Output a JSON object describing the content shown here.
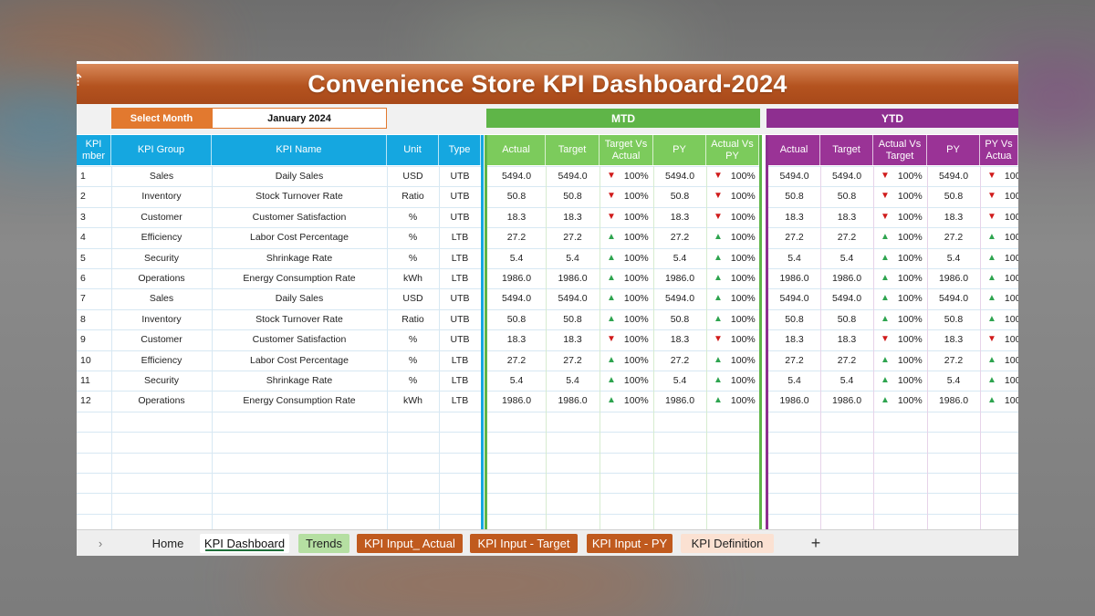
{
  "title": "Convenience Store KPI Dashboard-2024",
  "selector": {
    "label": "Select Month",
    "value": "January 2024"
  },
  "groups": {
    "mtd": "MTD",
    "ytd": "YTD"
  },
  "left_headers": [
    "KPI\nNumber",
    "KPI Group",
    "KPI Name",
    "Unit",
    "Type"
  ],
  "left_header_visible": [
    "KPI\nmber",
    "KPI Group",
    "KPI Name",
    "Unit",
    "Type"
  ],
  "mtd_headers": [
    "Actual",
    "Target",
    "Target Vs\nActual",
    "PY",
    "Actual Vs\nPY"
  ],
  "ytd_headers": [
    "Actual",
    "Target",
    "Actual Vs\nTarget",
    "PY",
    "PY Vs\nActua"
  ],
  "rows": [
    {
      "num": "1",
      "group": "Sales",
      "name": "Daily Sales",
      "unit": "USD",
      "type": "UTB",
      "mtd_actual": "5494.0",
      "mtd_target": "5494.0",
      "mtd_tva": "100%",
      "mtd_tva_dir": "down",
      "mtd_py": "5494.0",
      "mtd_avp": "100%",
      "mtd_avp_dir": "down",
      "ytd_actual": "5494.0",
      "ytd_target": "5494.0",
      "ytd_avt": "100%",
      "ytd_avt_dir": "down",
      "ytd_py": "5494.0",
      "ytd_pva": "100",
      "ytd_pva_dir": "down"
    },
    {
      "num": "2",
      "group": "Inventory",
      "name": "Stock Turnover Rate",
      "unit": "Ratio",
      "type": "UTB",
      "mtd_actual": "50.8",
      "mtd_target": "50.8",
      "mtd_tva": "100%",
      "mtd_tva_dir": "down",
      "mtd_py": "50.8",
      "mtd_avp": "100%",
      "mtd_avp_dir": "down",
      "ytd_actual": "50.8",
      "ytd_target": "50.8",
      "ytd_avt": "100%",
      "ytd_avt_dir": "down",
      "ytd_py": "50.8",
      "ytd_pva": "100",
      "ytd_pva_dir": "down"
    },
    {
      "num": "3",
      "group": "Customer",
      "name": "Customer Satisfaction",
      "unit": "%",
      "type": "UTB",
      "mtd_actual": "18.3",
      "mtd_target": "18.3",
      "mtd_tva": "100%",
      "mtd_tva_dir": "down",
      "mtd_py": "18.3",
      "mtd_avp": "100%",
      "mtd_avp_dir": "down",
      "ytd_actual": "18.3",
      "ytd_target": "18.3",
      "ytd_avt": "100%",
      "ytd_avt_dir": "down",
      "ytd_py": "18.3",
      "ytd_pva": "100",
      "ytd_pva_dir": "down"
    },
    {
      "num": "4",
      "group": "Efficiency",
      "name": "Labor Cost Percentage",
      "unit": "%",
      "type": "LTB",
      "mtd_actual": "27.2",
      "mtd_target": "27.2",
      "mtd_tva": "100%",
      "mtd_tva_dir": "up",
      "mtd_py": "27.2",
      "mtd_avp": "100%",
      "mtd_avp_dir": "up",
      "ytd_actual": "27.2",
      "ytd_target": "27.2",
      "ytd_avt": "100%",
      "ytd_avt_dir": "up",
      "ytd_py": "27.2",
      "ytd_pva": "100",
      "ytd_pva_dir": "up"
    },
    {
      "num": "5",
      "group": "Security",
      "name": "Shrinkage Rate",
      "unit": "%",
      "type": "LTB",
      "mtd_actual": "5.4",
      "mtd_target": "5.4",
      "mtd_tva": "100%",
      "mtd_tva_dir": "up",
      "mtd_py": "5.4",
      "mtd_avp": "100%",
      "mtd_avp_dir": "up",
      "ytd_actual": "5.4",
      "ytd_target": "5.4",
      "ytd_avt": "100%",
      "ytd_avt_dir": "up",
      "ytd_py": "5.4",
      "ytd_pva": "100",
      "ytd_pva_dir": "up"
    },
    {
      "num": "6",
      "group": "Operations",
      "name": "Energy Consumption Rate",
      "unit": "kWh",
      "type": "LTB",
      "mtd_actual": "1986.0",
      "mtd_target": "1986.0",
      "mtd_tva": "100%",
      "mtd_tva_dir": "up",
      "mtd_py": "1986.0",
      "mtd_avp": "100%",
      "mtd_avp_dir": "up",
      "ytd_actual": "1986.0",
      "ytd_target": "1986.0",
      "ytd_avt": "100%",
      "ytd_avt_dir": "up",
      "ytd_py": "1986.0",
      "ytd_pva": "100",
      "ytd_pva_dir": "up"
    },
    {
      "num": "7",
      "group": "Sales",
      "name": "Daily Sales",
      "unit": "USD",
      "type": "UTB",
      "mtd_actual": "5494.0",
      "mtd_target": "5494.0",
      "mtd_tva": "100%",
      "mtd_tva_dir": "up",
      "mtd_py": "5494.0",
      "mtd_avp": "100%",
      "mtd_avp_dir": "up",
      "ytd_actual": "5494.0",
      "ytd_target": "5494.0",
      "ytd_avt": "100%",
      "ytd_avt_dir": "up",
      "ytd_py": "5494.0",
      "ytd_pva": "100",
      "ytd_pva_dir": "up"
    },
    {
      "num": "8",
      "group": "Inventory",
      "name": "Stock Turnover Rate",
      "unit": "Ratio",
      "type": "UTB",
      "mtd_actual": "50.8",
      "mtd_target": "50.8",
      "mtd_tva": "100%",
      "mtd_tva_dir": "up",
      "mtd_py": "50.8",
      "mtd_avp": "100%",
      "mtd_avp_dir": "up",
      "ytd_actual": "50.8",
      "ytd_target": "50.8",
      "ytd_avt": "100%",
      "ytd_avt_dir": "up",
      "ytd_py": "50.8",
      "ytd_pva": "100",
      "ytd_pva_dir": "up"
    },
    {
      "num": "9",
      "group": "Customer",
      "name": "Customer Satisfaction",
      "unit": "%",
      "type": "UTB",
      "mtd_actual": "18.3",
      "mtd_target": "18.3",
      "mtd_tva": "100%",
      "mtd_tva_dir": "down",
      "mtd_py": "18.3",
      "mtd_avp": "100%",
      "mtd_avp_dir": "down",
      "ytd_actual": "18.3",
      "ytd_target": "18.3",
      "ytd_avt": "100%",
      "ytd_avt_dir": "down",
      "ytd_py": "18.3",
      "ytd_pva": "100",
      "ytd_pva_dir": "down"
    },
    {
      "num": "10",
      "group": "Efficiency",
      "name": "Labor Cost Percentage",
      "unit": "%",
      "type": "LTB",
      "mtd_actual": "27.2",
      "mtd_target": "27.2",
      "mtd_tva": "100%",
      "mtd_tva_dir": "up",
      "mtd_py": "27.2",
      "mtd_avp": "100%",
      "mtd_avp_dir": "up",
      "ytd_actual": "27.2",
      "ytd_target": "27.2",
      "ytd_avt": "100%",
      "ytd_avt_dir": "up",
      "ytd_py": "27.2",
      "ytd_pva": "100",
      "ytd_pva_dir": "up"
    },
    {
      "num": "11",
      "group": "Security",
      "name": "Shrinkage Rate",
      "unit": "%",
      "type": "LTB",
      "mtd_actual": "5.4",
      "mtd_target": "5.4",
      "mtd_tva": "100%",
      "mtd_tva_dir": "up",
      "mtd_py": "5.4",
      "mtd_avp": "100%",
      "mtd_avp_dir": "up",
      "ytd_actual": "5.4",
      "ytd_target": "5.4",
      "ytd_avt": "100%",
      "ytd_avt_dir": "up",
      "ytd_py": "5.4",
      "ytd_pva": "100",
      "ytd_pva_dir": "up"
    },
    {
      "num": "12",
      "group": "Operations",
      "name": "Energy Consumption Rate",
      "unit": "kWh",
      "type": "LTB",
      "mtd_actual": "1986.0",
      "mtd_target": "1986.0",
      "mtd_tva": "100%",
      "mtd_tva_dir": "up",
      "mtd_py": "1986.0",
      "mtd_avp": "100%",
      "mtd_avp_dir": "up",
      "ytd_actual": "1986.0",
      "ytd_target": "1986.0",
      "ytd_avt": "100%",
      "ytd_avt_dir": "up",
      "ytd_py": "1986.0",
      "ytd_pva": "100",
      "ytd_pva_dir": "up"
    }
  ],
  "tabs": {
    "nav": "›",
    "home": "Home",
    "kpi_dashboard": "KPI Dashboard",
    "trends": "Trends",
    "kpi_input_actual": "KPI Input_ Actual",
    "kpi_input_target": "KPI Input - Target",
    "kpi_input_py": "KPI Input - PY",
    "kpi_definition": "KPI Definition",
    "add": "+"
  },
  "colors": {
    "title_bar": "#b4531f",
    "select_label": "#e2792f",
    "header_blue": "#15a7e0",
    "mtd_green": "#5fb548",
    "ytd_purple": "#8e2f90",
    "down_red": "#d01a1a",
    "up_green": "#2ea44f"
  },
  "icons": {
    "down": "red-down-triangle-icon",
    "up": "green-up-triangle-icon",
    "corner": "sort-arrow-icon"
  }
}
